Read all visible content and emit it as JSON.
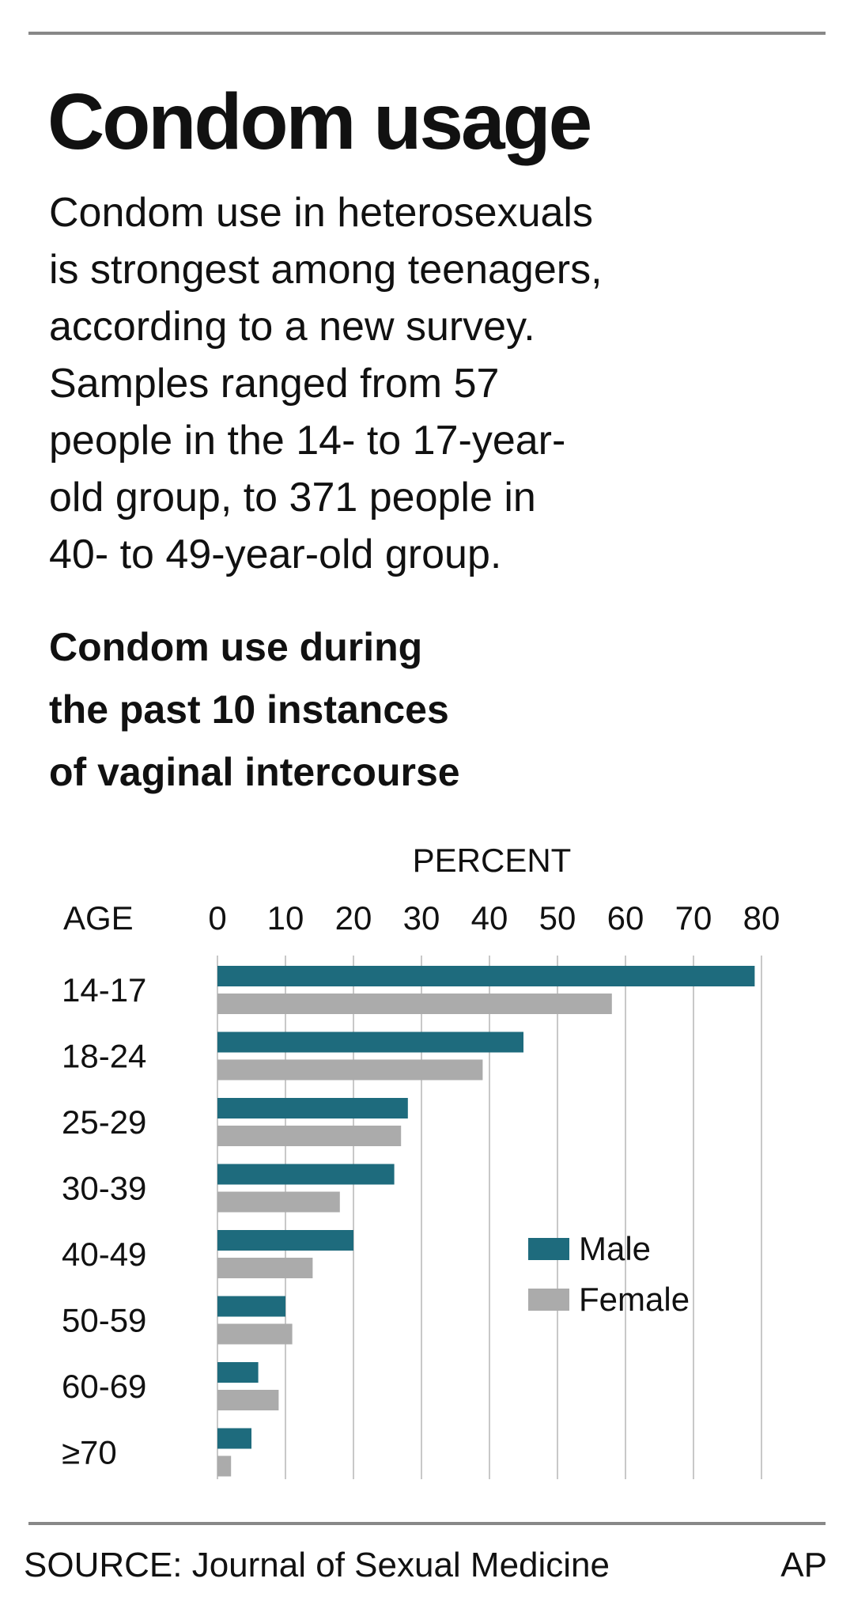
{
  "chart_data": {
    "type": "bar",
    "orientation": "horizontal",
    "title": "Condom usage",
    "subtitle_lines": [
      "Condom use in heterosexuals",
      "is strongest among teenagers,",
      "according to a new survey.",
      "Samples ranged from 57",
      "people in the 14- to 17-year-",
      "old group, to 371 people in",
      "40- to 49-year-old group."
    ],
    "chart_title_lines": [
      "Condom use during",
      "the past 10 instances",
      "of vaginal intercourse"
    ],
    "xlabel": "PERCENT",
    "ylabel": "AGE",
    "categories": [
      "14-17",
      "18-24",
      "25-29",
      "30-39",
      "40-49",
      "50-59",
      "60-69",
      "≥70"
    ],
    "series": [
      {
        "name": "Male",
        "color": "#1e6b7d",
        "values": [
          79,
          45,
          28,
          26,
          20,
          10,
          6,
          5
        ]
      },
      {
        "name": "Female",
        "color": "#ababab",
        "values": [
          58,
          39,
          27,
          18,
          14,
          11,
          9,
          2
        ]
      }
    ],
    "xlim": [
      0,
      80
    ],
    "xticks": [
      0,
      10,
      20,
      30,
      40,
      50,
      60,
      70,
      80
    ],
    "grid": true,
    "legend": "right",
    "source": "SOURCE: Journal of Sexual Medicine",
    "credit": "AP"
  }
}
